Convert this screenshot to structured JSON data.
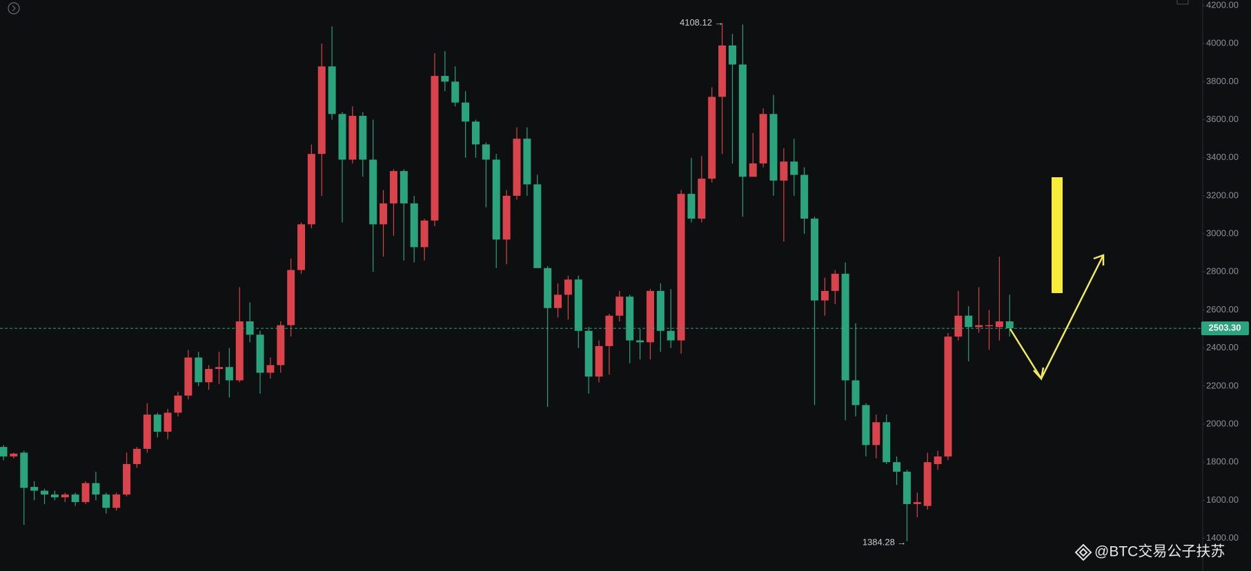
{
  "chart_data": {
    "type": "candlestick",
    "up_color": "#d9434b",
    "down_color": "#2ba37c",
    "ylim": [
      1228,
      4229
    ],
    "yticks": [
      {
        "value": 1400,
        "label": "1400.00"
      },
      {
        "value": 1600,
        "label": "1600.00"
      },
      {
        "value": 1800,
        "label": "1800.00"
      },
      {
        "value": 2000,
        "label": "2000.00"
      },
      {
        "value": 2200,
        "label": "2200.00"
      },
      {
        "value": 2400,
        "label": "2400.00"
      },
      {
        "value": 2600,
        "label": "2600.00"
      },
      {
        "value": 2800,
        "label": "2800.00"
      },
      {
        "value": 3000,
        "label": "3000.00"
      },
      {
        "value": 3200,
        "label": "3200.00"
      },
      {
        "value": 3400,
        "label": "3400.00"
      },
      {
        "value": 3600,
        "label": "3600.00"
      },
      {
        "value": 3800,
        "label": "3800.00"
      },
      {
        "value": 4000,
        "label": "4000.00"
      },
      {
        "value": 4200,
        "label": "4200.00"
      }
    ],
    "open": [
      1880,
      1830,
      1850,
      1670,
      1650,
      1630,
      1615,
      1630,
      1590,
      1690,
      1630,
      1560,
      1630,
      1790,
      1870,
      2050,
      1960,
      2060,
      2150,
      2350,
      2220,
      2290,
      2300,
      2230,
      2540,
      2470,
      2270,
      2310,
      2520,
      2810,
      3050,
      3420,
      3880,
      3630,
      3390,
      3620,
      3390,
      3050,
      3160,
      3330,
      3160,
      2930,
      3070,
      3830,
      3800,
      3690,
      3590,
      3470,
      3390,
      2970,
      3200,
      3500,
      3260,
      2820,
      2610,
      2680,
      2760,
      2490,
      2250,
      2410,
      2570,
      2670,
      2440,
      2430,
      2700,
      2490,
      2440,
      3210,
      3080,
      3290,
      3720,
      3990,
      3890,
      3300,
      3370,
      3630,
      3280,
      3380,
      3310,
      3080,
      2650,
      2700,
      2790,
      2230,
      2100,
      1890,
      2010,
      1800,
      1750,
      1580,
      1570,
      1790,
      1830,
      2460,
      2570,
      2510,
      2515,
      2510,
      2540
    ],
    "high": [
      1890,
      1850,
      1860,
      1700,
      1660,
      1650,
      1640,
      1640,
      1700,
      1750,
      1640,
      1640,
      1850,
      1880,
      2110,
      2060,
      2080,
      2170,
      2390,
      2380,
      2310,
      2380,
      2400,
      2720,
      2640,
      2490,
      2350,
      2540,
      2870,
      3060,
      3470,
      4000,
      4090,
      3640,
      3670,
      3640,
      3600,
      3230,
      3340,
      3340,
      3200,
      3080,
      3950,
      3960,
      3880,
      3750,
      3600,
      3480,
      3420,
      3230,
      3560,
      3560,
      3310,
      2830,
      2740,
      2780,
      2780,
      2510,
      2440,
      2580,
      2700,
      2680,
      2500,
      2710,
      2740,
      2710,
      3230,
      3400,
      3410,
      3770,
      4108.12,
      4050,
      4100,
      3530,
      3660,
      3730,
      3450,
      3500,
      3350,
      3090,
      2770,
      2810,
      2850,
      2530,
      2110,
      2050,
      2050,
      1830,
      1760,
      1640,
      1850,
      1860,
      2480,
      2700,
      2620,
      2720,
      2600,
      2880,
      2680
    ],
    "low": [
      1810,
      1820,
      1470,
      1600,
      1580,
      1600,
      1590,
      1570,
      1580,
      1600,
      1530,
      1545,
      1620,
      1770,
      1850,
      1930,
      1920,
      2040,
      2130,
      2200,
      2180,
      2210,
      2140,
      2220,
      2430,
      2160,
      2240,
      2270,
      2460,
      2790,
      3030,
      3200,
      3600,
      3060,
      3370,
      3300,
      2800,
      2880,
      2990,
      2860,
      2850,
      2860,
      3040,
      3750,
      3670,
      3400,
      3400,
      3140,
      2820,
      2840,
      3180,
      3200,
      2820,
      2090,
      2560,
      2550,
      2400,
      2160,
      2220,
      2260,
      2540,
      2320,
      2340,
      2340,
      2380,
      2400,
      2370,
      3060,
      3060,
      3270,
      3420,
      3370,
      3090,
      3300,
      3350,
      3200,
      2960,
      3200,
      3000,
      2100,
      2570,
      2630,
      2020,
      2040,
      1830,
      1820,
      1790,
      1680,
      1384.28,
      1510,
      1550,
      1760,
      1810,
      2440,
      2330,
      2480,
      2390,
      2440,
      2460
    ],
    "close": [
      1830,
      1845,
      1665,
      1650,
      1630,
      1615,
      1630,
      1590,
      1690,
      1630,
      1560,
      1630,
      1790,
      1870,
      2050,
      1960,
      2060,
      2150,
      2350,
      2220,
      2290,
      2300,
      2230,
      2540,
      2470,
      2270,
      2310,
      2520,
      2810,
      3050,
      3420,
      3880,
      3630,
      3390,
      3620,
      3390,
      3050,
      3160,
      3330,
      3160,
      2930,
      3070,
      3830,
      3800,
      3690,
      3590,
      3470,
      3390,
      2970,
      3200,
      3500,
      3260,
      2820,
      2610,
      2680,
      2760,
      2490,
      2250,
      2410,
      2570,
      2670,
      2440,
      2430,
      2700,
      2490,
      2440,
      3210,
      3080,
      3290,
      3720,
      3990,
      3890,
      3300,
      3370,
      3630,
      3280,
      3380,
      3310,
      3080,
      2650,
      2700,
      2790,
      2230,
      2100,
      1890,
      2010,
      1800,
      1750,
      1580,
      1590,
      1800,
      1830,
      2460,
      2570,
      2510,
      2520,
      2520,
      2540,
      2503.3
    ],
    "high_label": "4108.12 →",
    "low_label": "1384.28 →",
    "last_price_label": "2503.30",
    "watermark": "@BTC交易公子扶苏"
  }
}
